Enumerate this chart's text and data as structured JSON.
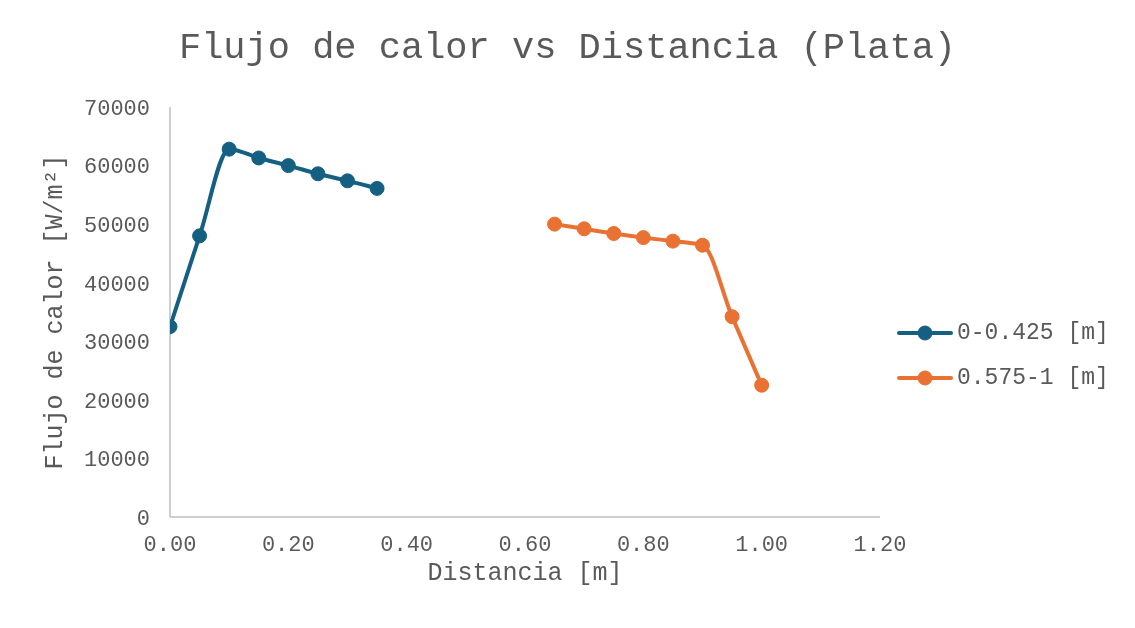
{
  "chart_data": {
    "type": "line",
    "title": "Flujo de calor vs Distancia (Plata)",
    "xlabel": "Distancia [m]",
    "ylabel": "Flujo de calor [W/m²]",
    "series": [
      {
        "name": "0-0.425 [m]",
        "color": "#156082",
        "x": [
          0,
          0.05,
          0.1,
          0.15,
          0.2,
          0.25,
          0.3,
          0.35
        ],
        "values": [
          32500,
          48000,
          62800,
          61300,
          60000,
          58600,
          57400,
          56100
        ]
      },
      {
        "name": "0.575-1 [m]",
        "color": "#e97132",
        "x": [
          0.65,
          0.7,
          0.75,
          0.8,
          0.85,
          0.9,
          0.95,
          1.0
        ],
        "values": [
          50000,
          49200,
          48400,
          47700,
          47100,
          46400,
          34200,
          22500
        ]
      }
    ],
    "xlim": [
      0,
      1.2
    ],
    "xticks": [
      {
        "value": 0,
        "label": "0.00"
      },
      {
        "value": 0.2,
        "label": "0.20"
      },
      {
        "value": 0.4,
        "label": "0.40"
      },
      {
        "value": 0.6,
        "label": "0.60"
      },
      {
        "value": 0.8,
        "label": "0.80"
      },
      {
        "value": 1.0,
        "label": "1.00"
      },
      {
        "value": 1.2,
        "label": "1.20"
      }
    ],
    "ylim": [
      0,
      70000
    ],
    "yticks": [
      0,
      10000,
      20000,
      30000,
      40000,
      50000,
      60000,
      70000
    ],
    "legend": "right",
    "marker": "circle"
  }
}
